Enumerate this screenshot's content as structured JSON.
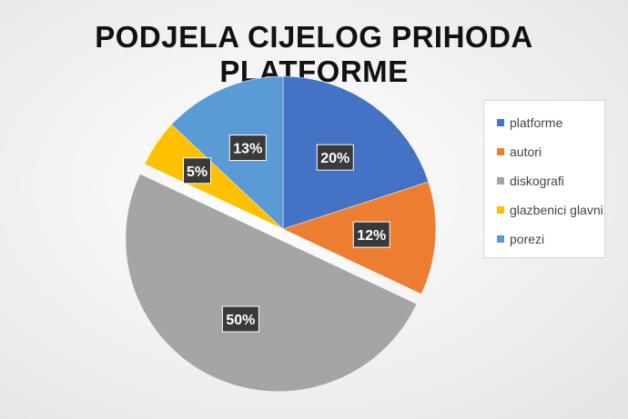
{
  "chart_data": {
    "type": "pie",
    "title": "PODJELA CIJELOG PRIHODA PLATFORME",
    "categories": [
      "platforme",
      "autori",
      "diskografi",
      "glazbenici glavni",
      "porezi"
    ],
    "values": [
      20,
      12,
      50,
      5,
      13
    ],
    "data_labels": [
      "20%",
      "12%",
      "50%",
      "5%",
      "13%"
    ],
    "colors": [
      "#4472C4",
      "#ED7D31",
      "#A5A5A5",
      "#FFC000",
      "#5B9BD5"
    ],
    "exploded": [
      "diskografi"
    ],
    "legend_position": "right"
  }
}
